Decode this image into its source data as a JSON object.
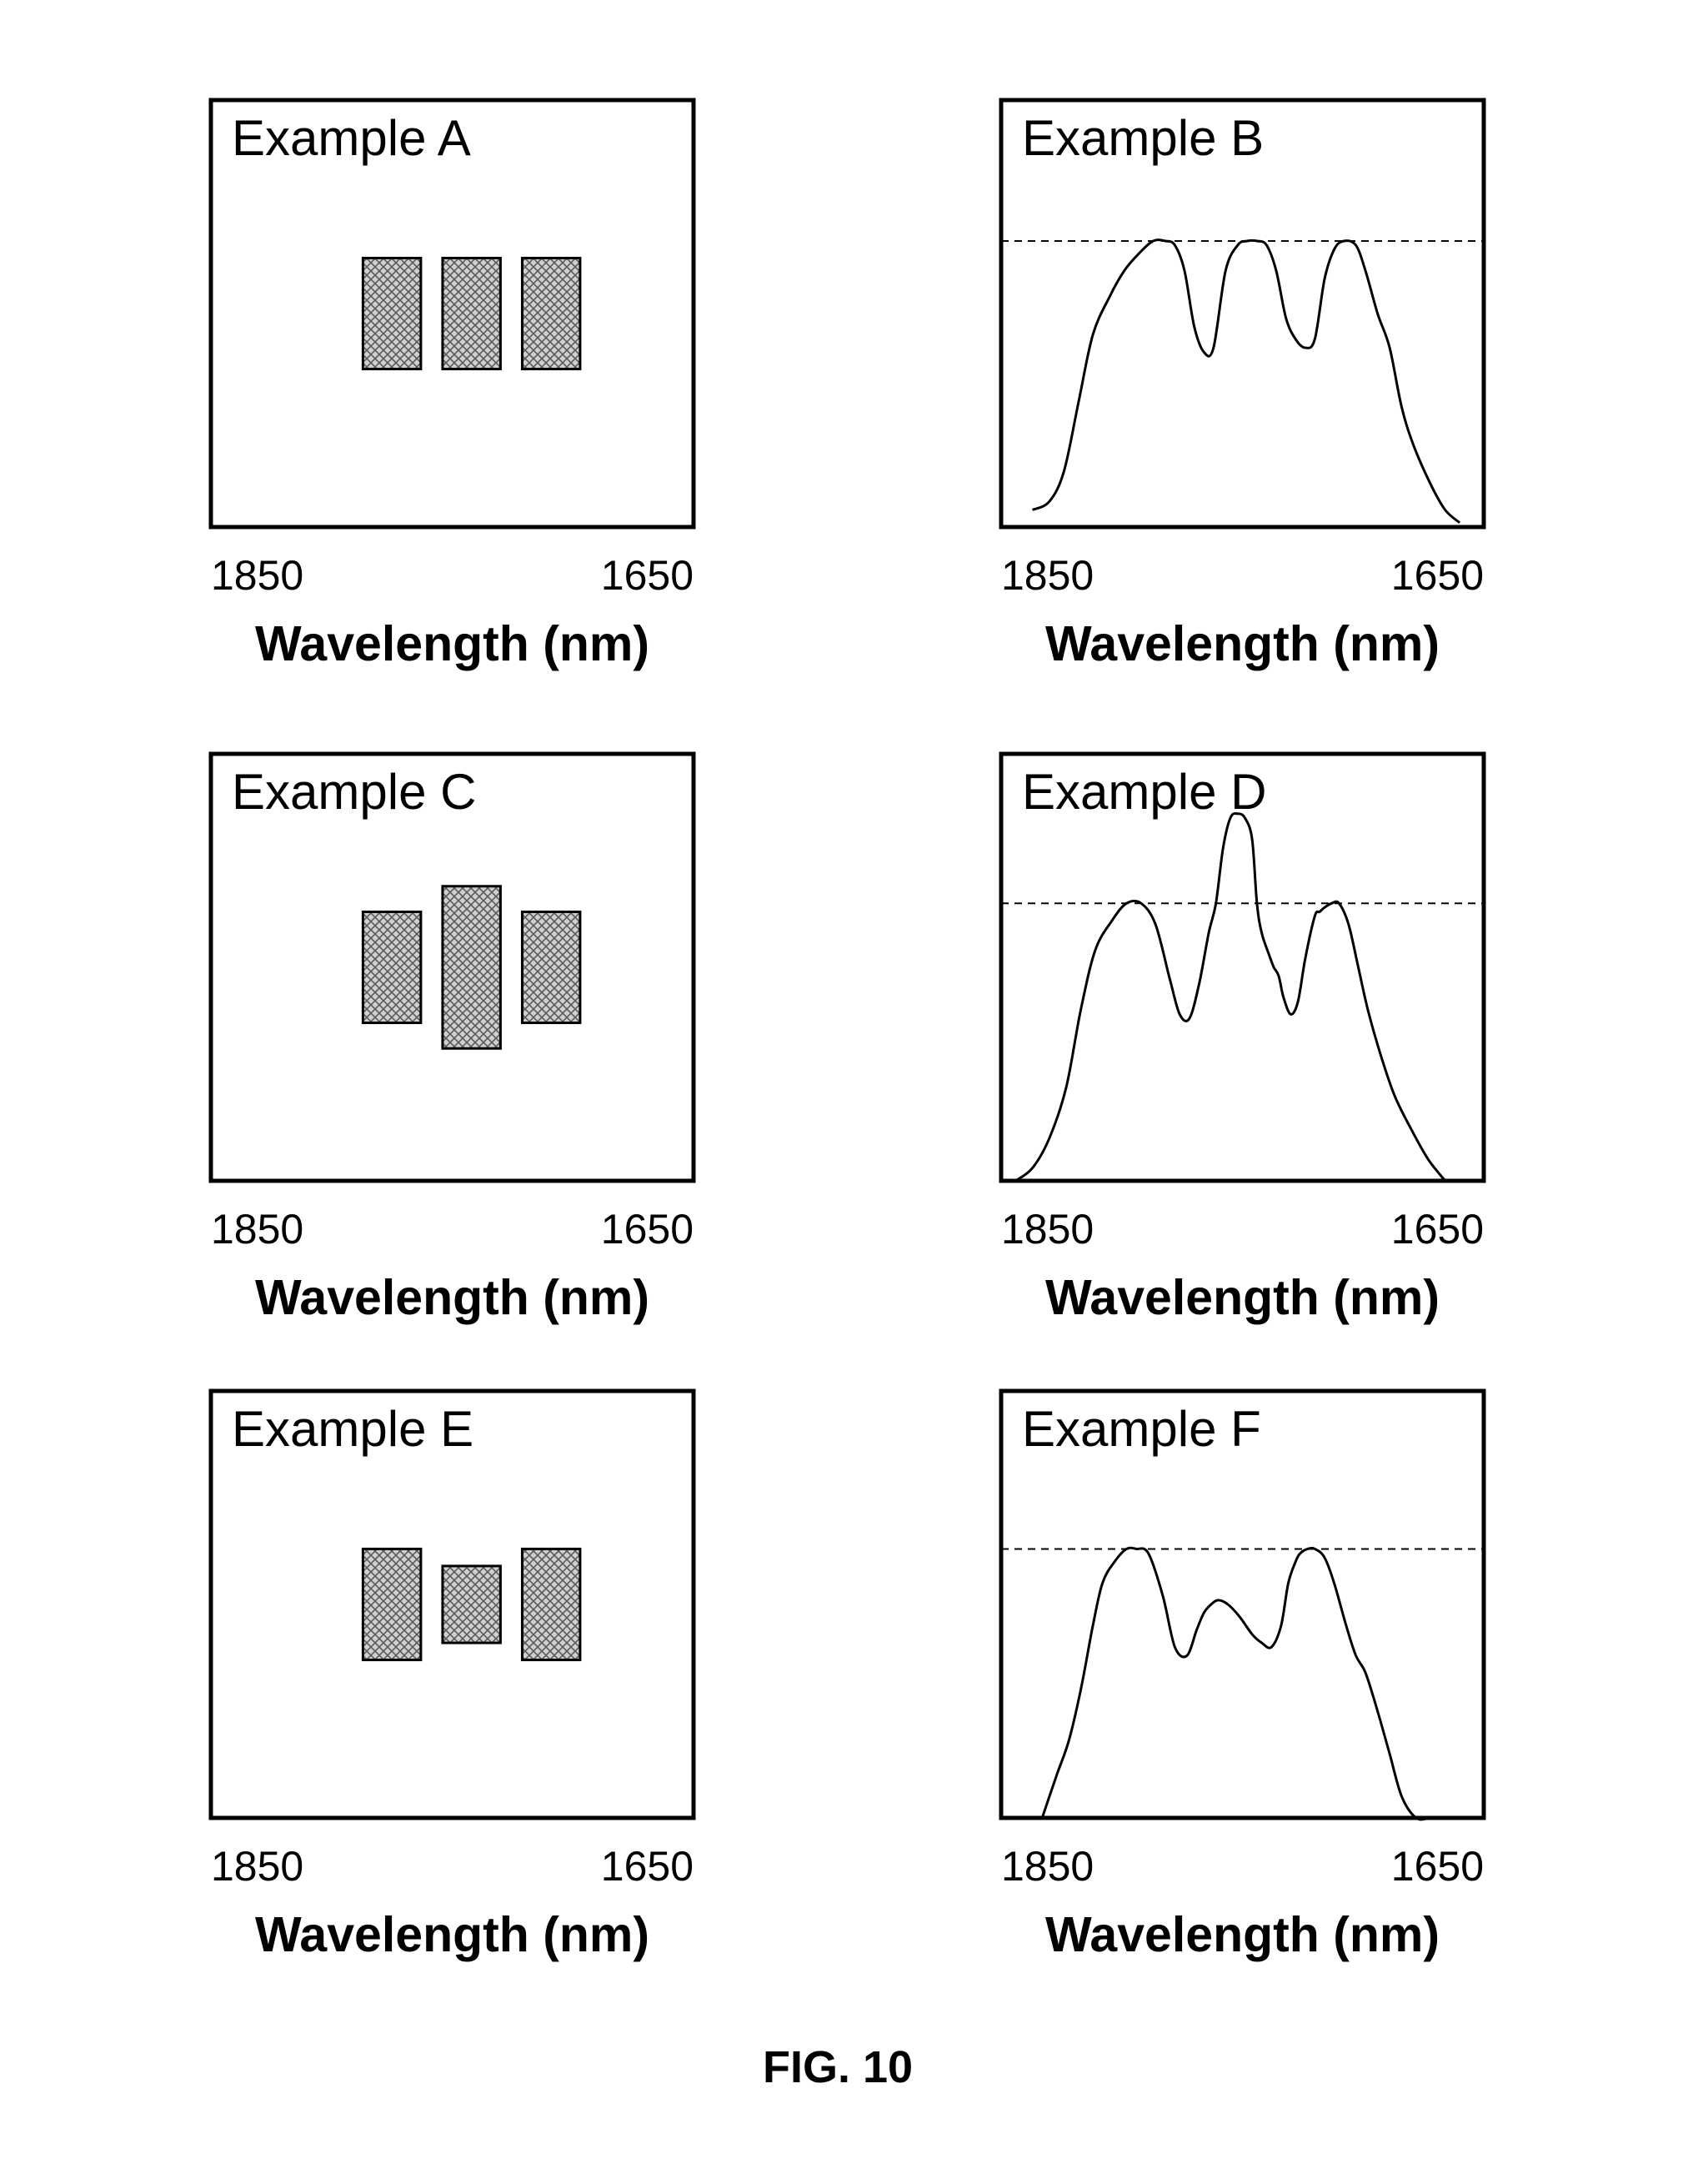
{
  "figure": {
    "caption": "FIG. 10"
  },
  "colors": {
    "ink": "#000000",
    "hatch_fill": "#cfcfcf",
    "background": "#ffffff"
  },
  "chart_data": [
    {
      "id": "A",
      "type": "bar",
      "title": "Example A",
      "xlabel": "Wavelength (nm)",
      "x_tick_labels": [
        "1850",
        "1650"
      ],
      "xlim": [
        1850,
        1650
      ],
      "ylim": [
        0,
        1
      ],
      "bars": [
        {
          "center": 1775,
          "width": 24,
          "bottom": 0.37,
          "top": 0.63
        },
        {
          "center": 1742,
          "width": 24,
          "bottom": 0.37,
          "top": 0.63
        },
        {
          "center": 1709,
          "width": 24,
          "bottom": 0.37,
          "top": 0.63
        }
      ]
    },
    {
      "id": "B",
      "type": "line",
      "title": "Example B",
      "xlabel": "Wavelength (nm)",
      "x_tick_labels": [
        "1850",
        "1650"
      ],
      "xlim": [
        1850,
        1650
      ],
      "ylim": [
        0,
        1
      ],
      "reference_line": 0.67,
      "x": [
        1837,
        1830,
        1824,
        1818,
        1812,
        1805,
        1799,
        1793,
        1787,
        1782,
        1778,
        1774,
        1770,
        1766,
        1762,
        1757,
        1752,
        1748,
        1744,
        1740,
        1736,
        1732,
        1728,
        1724,
        1720,
        1716,
        1712,
        1708,
        1703,
        1699,
        1694,
        1689,
        1684,
        1679,
        1672,
        1666,
        1660
      ],
      "y": [
        0.04,
        0.06,
        0.13,
        0.29,
        0.45,
        0.54,
        0.6,
        0.64,
        0.67,
        0.67,
        0.66,
        0.6,
        0.47,
        0.41,
        0.42,
        0.6,
        0.66,
        0.67,
        0.67,
        0.66,
        0.6,
        0.49,
        0.44,
        0.42,
        0.44,
        0.58,
        0.65,
        0.67,
        0.66,
        0.6,
        0.5,
        0.42,
        0.28,
        0.19,
        0.1,
        0.04,
        0.01
      ]
    },
    {
      "id": "C",
      "type": "bar",
      "title": "Example C",
      "xlabel": "Wavelength (nm)",
      "x_tick_labels": [
        "1850",
        "1650"
      ],
      "xlim": [
        1850,
        1650
      ],
      "ylim": [
        0,
        1
      ],
      "bars": [
        {
          "center": 1775,
          "width": 24,
          "bottom": 0.37,
          "top": 0.63
        },
        {
          "center": 1742,
          "width": 24,
          "bottom": 0.31,
          "top": 0.69
        },
        {
          "center": 1709,
          "width": 24,
          "bottom": 0.37,
          "top": 0.63
        }
      ]
    },
    {
      "id": "D",
      "type": "line",
      "title": "Example D",
      "xlabel": "Wavelength (nm)",
      "x_tick_labels": [
        "1850",
        "1650"
      ],
      "xlim": [
        1850,
        1650
      ],
      "ylim": [
        0,
        1
      ],
      "reference_line": 0.65,
      "x": [
        1844,
        1837,
        1830,
        1823,
        1817,
        1811,
        1804,
        1798,
        1792,
        1786,
        1780,
        1776,
        1772,
        1768,
        1764,
        1761,
        1758,
        1755,
        1752,
        1749,
        1746,
        1744,
        1742,
        1739,
        1737,
        1735,
        1733,
        1730,
        1727,
        1724,
        1720,
        1718,
        1716,
        1713,
        1710,
        1706,
        1702,
        1698,
        1693,
        1687,
        1680,
        1673,
        1666
      ],
      "y": [
        0.0,
        0.03,
        0.1,
        0.22,
        0.4,
        0.54,
        0.61,
        0.65,
        0.65,
        0.6,
        0.47,
        0.39,
        0.38,
        0.46,
        0.58,
        0.65,
        0.78,
        0.85,
        0.86,
        0.85,
        0.8,
        0.65,
        0.58,
        0.53,
        0.5,
        0.48,
        0.43,
        0.39,
        0.42,
        0.52,
        0.62,
        0.63,
        0.64,
        0.65,
        0.65,
        0.6,
        0.5,
        0.4,
        0.3,
        0.2,
        0.12,
        0.05,
        0.0
      ]
    },
    {
      "id": "E",
      "type": "bar",
      "title": "Example E",
      "xlabel": "Wavelength (nm)",
      "x_tick_labels": [
        "1850",
        "1650"
      ],
      "xlim": [
        1850,
        1650
      ],
      "ylim": [
        0,
        1
      ],
      "bars": [
        {
          "center": 1775,
          "width": 24,
          "bottom": 0.37,
          "top": 0.63
        },
        {
          "center": 1742,
          "width": 24,
          "bottom": 0.41,
          "top": 0.59
        },
        {
          "center": 1709,
          "width": 24,
          "bottom": 0.37,
          "top": 0.63
        }
      ]
    },
    {
      "id": "F",
      "type": "line",
      "title": "Example F",
      "xlabel": "Wavelength (nm)",
      "x_tick_labels": [
        "1850",
        "1650"
      ],
      "xlim": [
        1850,
        1650
      ],
      "ylim": [
        0,
        1
      ],
      "reference_line": 0.63,
      "x": [
        1833,
        1827,
        1822,
        1817,
        1812,
        1808,
        1803,
        1798,
        1794,
        1789,
        1783,
        1778,
        1773,
        1769,
        1766,
        1763,
        1760,
        1756,
        1751,
        1746,
        1742,
        1738,
        1734,
        1731,
        1728,
        1726,
        1723,
        1720,
        1716,
        1712,
        1707,
        1703,
        1699,
        1694,
        1689,
        1684,
        1678,
        1672,
        1667
      ],
      "y": [
        0.0,
        0.1,
        0.18,
        0.3,
        0.45,
        0.55,
        0.6,
        0.63,
        0.63,
        0.62,
        0.52,
        0.4,
        0.38,
        0.44,
        0.48,
        0.5,
        0.51,
        0.5,
        0.47,
        0.43,
        0.41,
        0.4,
        0.45,
        0.55,
        0.6,
        0.62,
        0.63,
        0.63,
        0.61,
        0.55,
        0.45,
        0.38,
        0.34,
        0.25,
        0.15,
        0.05,
        0.0,
        0.0,
        0.0
      ]
    }
  ]
}
